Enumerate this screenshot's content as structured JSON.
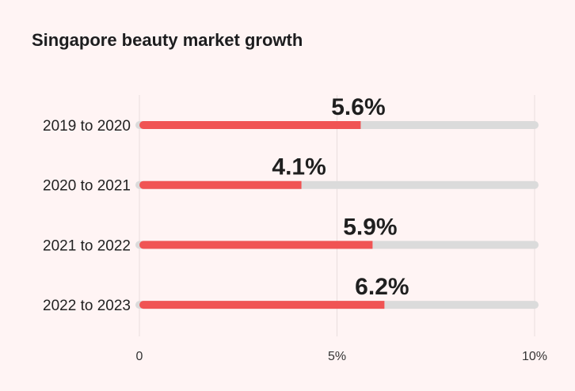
{
  "chart_data": {
    "type": "bar",
    "orientation": "horizontal",
    "title": "Singapore beauty market growth",
    "categories": [
      "2019 to 2020",
      "2020 to 2021",
      "2021 to 2022",
      "2022 to 2023"
    ],
    "values": [
      5.6,
      4.1,
      5.9,
      6.2
    ],
    "value_labels": [
      "5.6%",
      "4.1%",
      "5.9%",
      "6.2%"
    ],
    "xlim": [
      0,
      10
    ],
    "x_ticks": [
      0,
      5,
      10
    ],
    "x_tick_labels": [
      "0",
      "5%",
      "10%"
    ],
    "grid": true,
    "colors": {
      "bar": "#f05454",
      "track": "#dbdbdb",
      "grid": "#e8dede",
      "background": "#fff4f4"
    }
  }
}
